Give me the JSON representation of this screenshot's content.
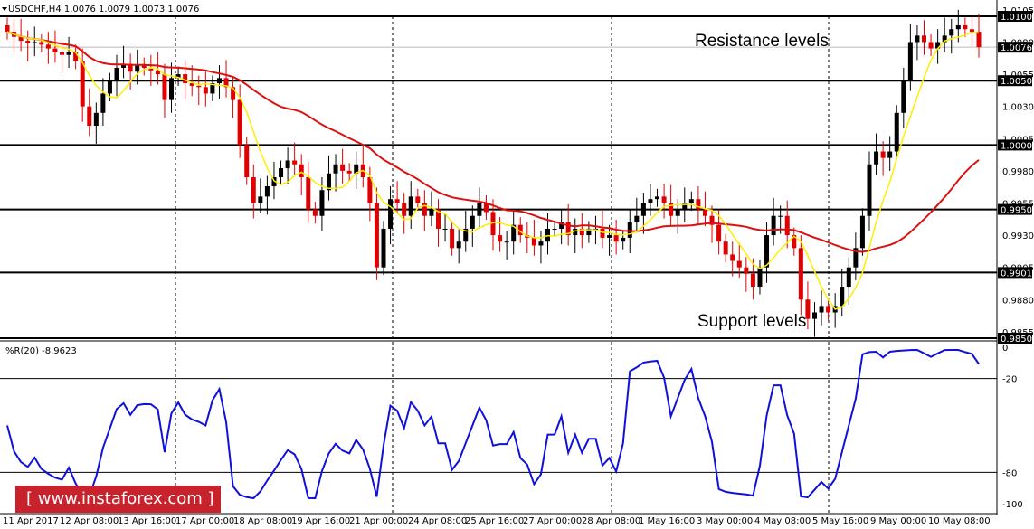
{
  "header": {
    "title": "USDCHF,H4  1.0076 1.0079 1.0073 1.0076",
    "indicator": "%R(20) -8.9623"
  },
  "annotations": {
    "resistance": "Resistance levels",
    "support": "Support levels"
  },
  "watermark": "[ www.instaforex.com ]",
  "colors": {
    "bull": "#000000",
    "bear": "#e00000",
    "ma_fast": "#ffee00",
    "ma_slow": "#dd1010",
    "wpr": "#1010dd"
  },
  "chart_data": [
    {
      "type": "candlestick",
      "symbol": "USDCHF,H4",
      "ohlc_current": [
        1.0076,
        1.0079,
        1.0073,
        1.0076
      ],
      "ylim": [
        0.985,
        1.0105
      ],
      "y_ticks": [
        "1.0105",
        "1.0080",
        "1.0055",
        "1.0030",
        "1.0005",
        "0.9980",
        "0.9955",
        "0.9930",
        "0.9905",
        "0.9880",
        "0.9855"
      ],
      "horizontal_levels": [
        "1.0100",
        "1.0050",
        "1.0000",
        "0.9950",
        "0.9901",
        "0.9850"
      ],
      "current_price": "1.0076",
      "x_labels": [
        "11 Apr 2017",
        "12 Apr 08:00",
        "13 Apr 16:00",
        "17 Apr 00:00",
        "18 Apr 08:00",
        "19 Apr 16:00",
        "21 Apr 00:00",
        "24 Apr 08:00",
        "25 Apr 16:00",
        "27 Apr 00:00",
        "28 Apr 08:00",
        "1 May 16:00",
        "3 May 00:00",
        "4 May 08:00",
        "5 May 16:00",
        "9 May 00:00",
        "10 May 08:00"
      ],
      "close_series": [
        1.0088,
        1.0084,
        1.0081,
        1.0079,
        1.008,
        1.0078,
        1.0075,
        1.0072,
        1.007,
        1.0072,
        1.0065,
        1.003,
        1.0015,
        1.0025,
        1.004,
        1.005,
        1.006,
        1.0063,
        1.0057,
        1.0062,
        1.006,
        1.0058,
        1.0055,
        1.0035,
        1.0052,
        1.0055,
        1.0048,
        1.0046,
        1.0045,
        1.004,
        1.0048,
        1.0052,
        1.0045,
        1.0035,
        1.0,
        0.9975,
        0.9955,
        0.996,
        0.9968,
        0.9975,
        0.9982,
        0.9988,
        0.9985,
        0.9975,
        0.995,
        0.9945,
        0.9965,
        0.9978,
        0.9985,
        0.998,
        0.9978,
        0.9985,
        0.9975,
        0.9955,
        0.9905,
        0.9935,
        0.9958,
        0.9955,
        0.9945,
        0.996,
        0.9955,
        0.9945,
        0.995,
        0.9935,
        0.9935,
        0.992,
        0.9925,
        0.9935,
        0.9945,
        0.9955,
        0.9948,
        0.993,
        0.9925,
        0.9925,
        0.9938,
        0.993,
        0.9928,
        0.9922,
        0.9925,
        0.9935,
        0.9935,
        0.994,
        0.993,
        0.9935,
        0.993,
        0.9935,
        0.9935,
        0.9928,
        0.993,
        0.9925,
        0.9928,
        0.994,
        0.9945,
        0.9955,
        0.9958,
        0.996,
        0.9955,
        0.9945,
        0.995,
        0.9955,
        0.9958,
        0.995,
        0.9945,
        0.9938,
        0.9925,
        0.9915,
        0.991,
        0.9905,
        0.99,
        0.989,
        0.9905,
        0.993,
        0.9945,
        0.9945,
        0.993,
        0.992,
        0.988,
        0.9865,
        0.987,
        0.9875,
        0.987,
        0.9875,
        0.989,
        0.9905,
        0.992,
        0.9945,
        0.9985,
        0.9995,
        0.999,
        0.9995,
        1.0025,
        1.005,
        1.008,
        1.0085,
        1.008,
        1.0075,
        1.008,
        1.0085,
        1.009,
        1.0093,
        1.009,
        1.0088,
        1.0076
      ]
    },
    {
      "type": "line",
      "name": "%R(20)",
      "value": -8.9623,
      "ylim": [
        -100,
        0
      ],
      "levels": [
        "0",
        "-20",
        "-80",
        "-100"
      ]
    }
  ]
}
